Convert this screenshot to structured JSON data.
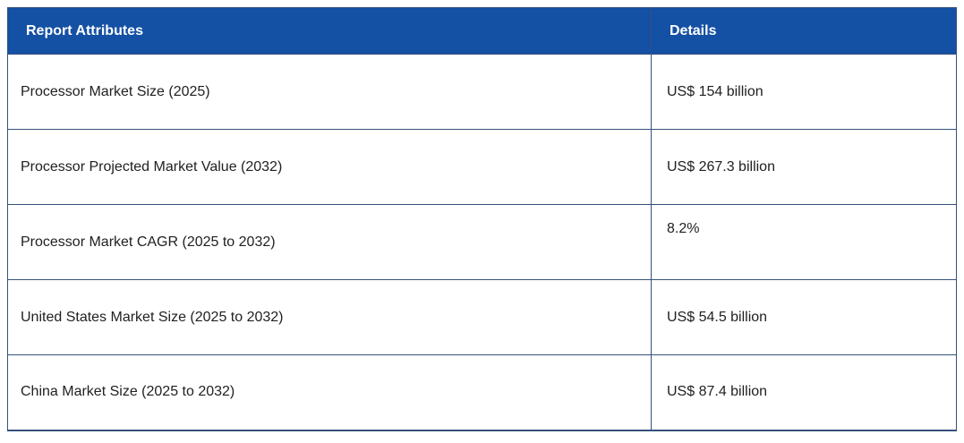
{
  "table": {
    "columns": [
      {
        "label": "Report Attributes"
      },
      {
        "label": "Details"
      }
    ],
    "rows": [
      {
        "attribute": "Processor Market Size (2025)",
        "detail": "US$ 154 billion"
      },
      {
        "attribute": "Processor Projected Market Value (2032)",
        "detail": "US$ 267.3 billion"
      },
      {
        "attribute": "Processor Market CAGR (2025 to 2032)",
        "detail": "8.2%"
      },
      {
        "attribute": "United States Market Size (2025 to 2032)",
        "detail": "US$ 54.5 billion"
      },
      {
        "attribute": "China Market Size (2025 to 2032)",
        "detail": "US$ 87.4 billion"
      }
    ]
  },
  "colors": {
    "header_bg": "#1450a4",
    "border": "#34517c",
    "header_text": "#ffffff",
    "body_text": "#212121",
    "row_bg": "#ffffff"
  }
}
